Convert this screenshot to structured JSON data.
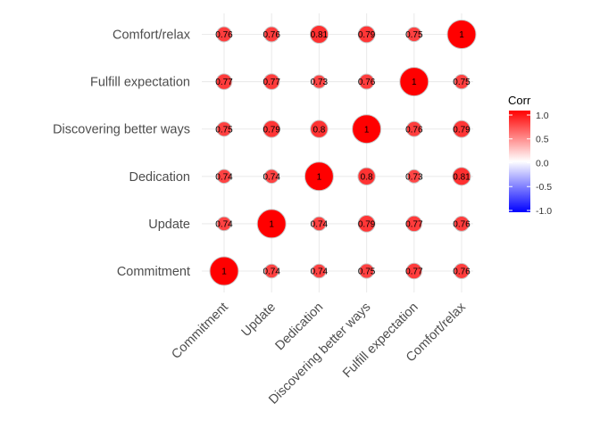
{
  "chart_data": {
    "type": "heatmap",
    "style": "circle-correlation-matrix",
    "x_categories": [
      "Commitment",
      "Update",
      "Dedication",
      "Discovering better ways",
      "Fulfill expectation",
      "Comfort/relax"
    ],
    "y_categories": [
      "Commitment",
      "Update",
      "Dedication",
      "Discovering better ways",
      "Fulfill expectation",
      "Comfort/relax"
    ],
    "matrix": [
      [
        1,
        0.74,
        0.74,
        0.75,
        0.77,
        0.76
      ],
      [
        0.74,
        1,
        0.74,
        0.79,
        0.77,
        0.76
      ],
      [
        0.74,
        0.74,
        1,
        0.8,
        0.73,
        0.81
      ],
      [
        0.75,
        0.79,
        0.8,
        1,
        0.76,
        0.79
      ],
      [
        0.77,
        0.77,
        0.73,
        0.76,
        1,
        0.75
      ],
      [
        0.76,
        0.76,
        0.81,
        0.79,
        0.75,
        1
      ]
    ],
    "legend": {
      "title": "Corr",
      "ticks": [
        1.0,
        0.5,
        0.0,
        -0.5,
        -1.0
      ],
      "tick_labels": [
        "1.0",
        "0.5",
        "0.0",
        "-0.5",
        "-1.0"
      ],
      "low_color": "#0000ff",
      "mid_color": "#ffffff",
      "high_color": "#ff0000",
      "placement": "right"
    },
    "grid": true
  }
}
